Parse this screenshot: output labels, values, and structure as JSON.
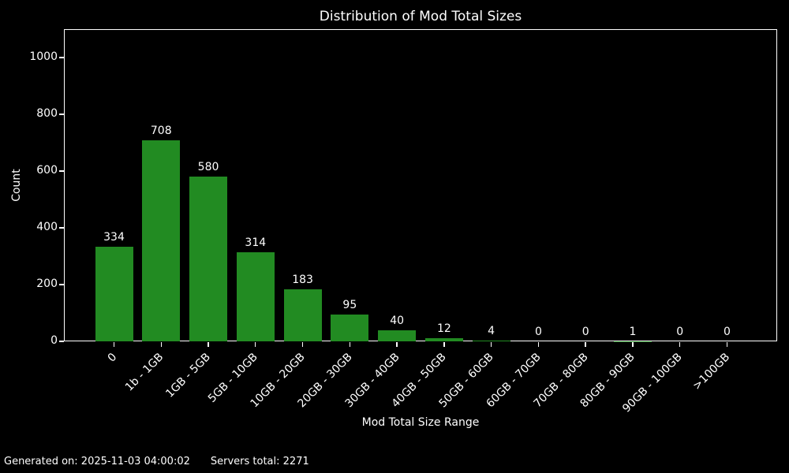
{
  "chart_data": {
    "type": "bar",
    "title": "Distribution of Mod Total Sizes",
    "xlabel": "Mod Total Size Range",
    "ylabel": "Count",
    "categories": [
      "0",
      "1b - 1GB",
      "1GB - 5GB",
      "5GB - 10GB",
      "10GB - 20GB",
      "20GB - 30GB",
      "30GB - 40GB",
      "40GB - 50GB",
      "50GB - 60GB",
      "60GB - 70GB",
      "70GB - 80GB",
      "80GB - 90GB",
      "90GB - 100GB",
      ">100GB"
    ],
    "values": [
      334,
      708,
      580,
      314,
      183,
      95,
      40,
      12,
      4,
      0,
      0,
      1,
      0,
      0
    ],
    "value_labels_shown": true,
    "yticks": [
      0,
      200,
      400,
      600,
      800,
      1000
    ],
    "ylim": [
      0,
      1100
    ],
    "xtick_rotation": 45,
    "grid": false,
    "legend": null,
    "bar_color": "#228b22",
    "background_color": "#000000",
    "text_color": "#ffffff"
  },
  "footer": {
    "generated": "Generated on: 2025-11-03 04:00:02",
    "servers_total": "Servers total: 2271"
  }
}
